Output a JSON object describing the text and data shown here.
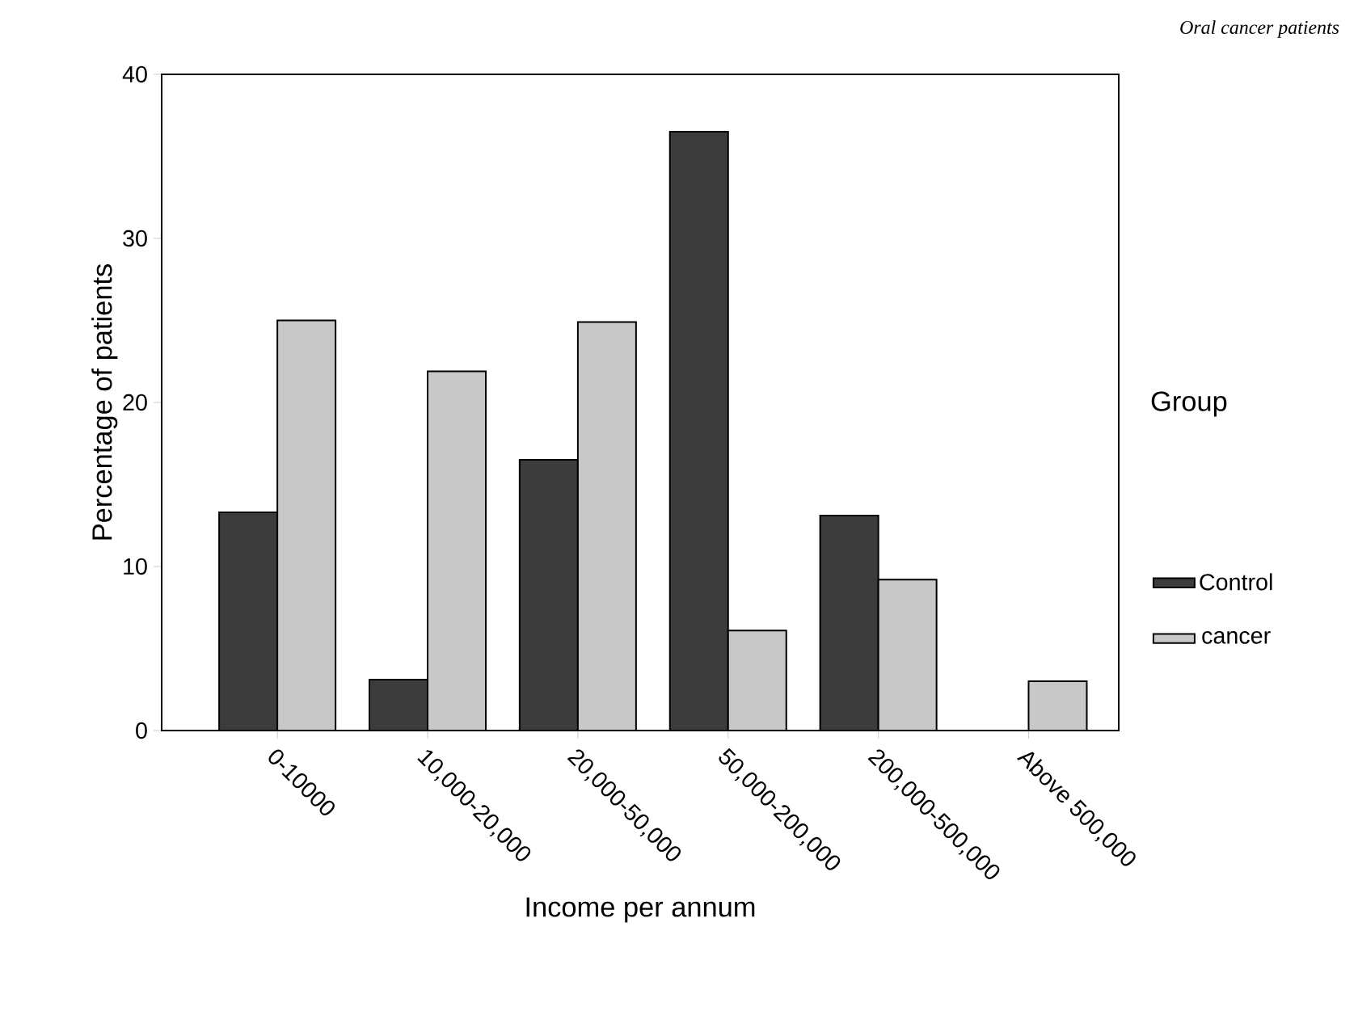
{
  "chart_data": {
    "type": "bar",
    "title": "Oral cancer patients",
    "xlabel": "Income per annum",
    "ylabel": "Percentage of patients",
    "legend_title": "Group",
    "categories": [
      "0-10000",
      "10,000-20,000",
      "20,000-50,000",
      "50,000-200,000",
      "200,000-500,000",
      "Above 500,000"
    ],
    "series": [
      {
        "name": "Control",
        "color": "#3c3c3c",
        "values": [
          13.3,
          3.1,
          16.5,
          36.5,
          13.1,
          0
        ]
      },
      {
        "name": "cancer",
        "color": "#c8c8c8",
        "values": [
          25.0,
          21.9,
          24.9,
          6.1,
          9.2,
          3.0
        ]
      }
    ],
    "ylim": [
      0,
      40
    ],
    "yticks": [
      0,
      10,
      20,
      30,
      40
    ],
    "grid": false,
    "legend": "right"
  }
}
